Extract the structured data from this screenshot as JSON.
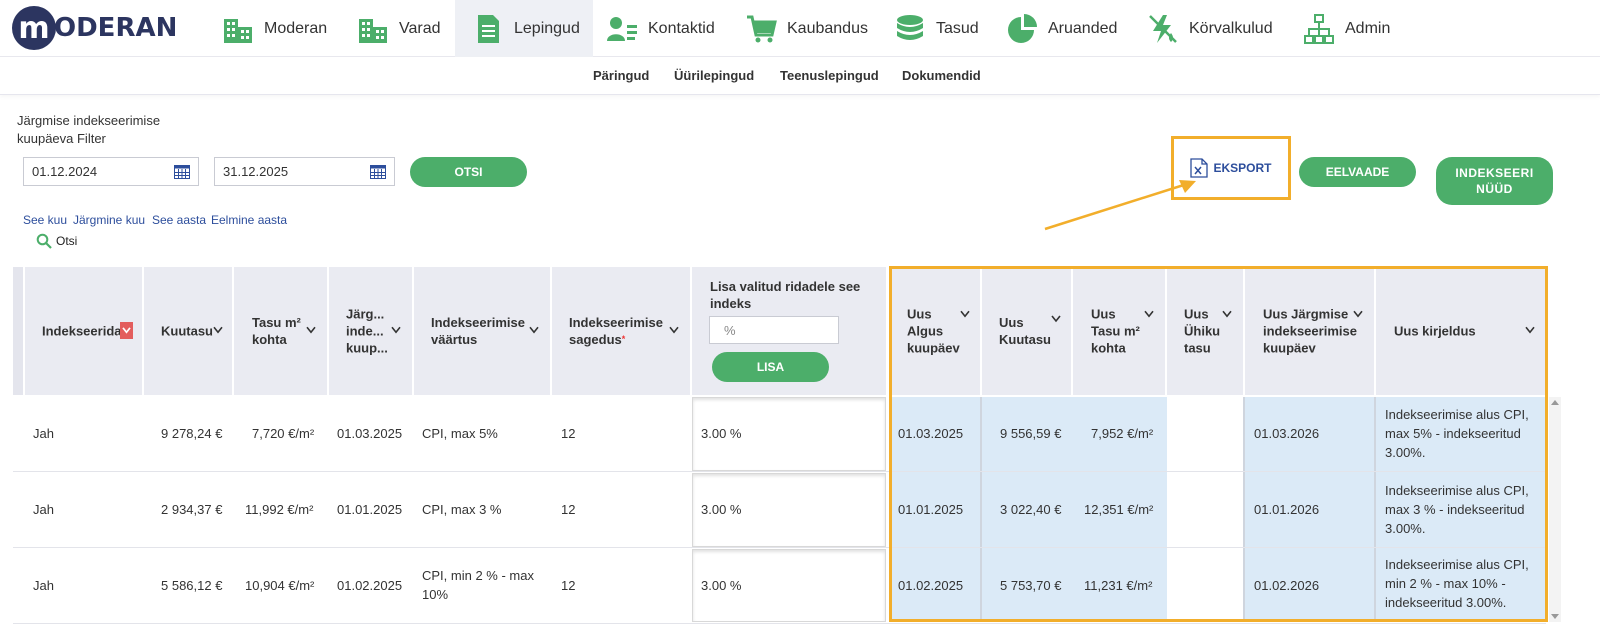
{
  "brand": {
    "logo_letter": "m",
    "logo_text": "ODERAN"
  },
  "nav": [
    {
      "label": "Moderan",
      "icon": "building-icon"
    },
    {
      "label": "Varad",
      "icon": "building-icon"
    },
    {
      "label": "Lepingud",
      "icon": "document-icon"
    },
    {
      "label": "Kontaktid",
      "icon": "contacts-icon"
    },
    {
      "label": "Kaubandus",
      "icon": "cart-icon"
    },
    {
      "label": "Tasud",
      "icon": "coins-icon"
    },
    {
      "label": "Aruanded",
      "icon": "pie-chart-icon"
    },
    {
      "label": "Körvalkulud",
      "icon": "utilities-icon"
    },
    {
      "label": "Admin",
      "icon": "org-chart-icon"
    }
  ],
  "subnav": [
    "Päringud",
    "Üürilepingud",
    "Teenuslepingud",
    "Dokumendid"
  ],
  "filter": {
    "label": "Järgmise indekseerimise kuupäeva Filter",
    "date_from": "01.12.2024",
    "date_to": "31.12.2025",
    "search_button": "OTSI",
    "quick_links": [
      "See kuu",
      "Järgmine kuu",
      "See aasta",
      "Eelmine aasta"
    ],
    "search_link": "Otsi"
  },
  "actions": {
    "export": "EKSPORT",
    "preview": "EELVAADE",
    "index_now": "INDEKSEERI NÜÜD"
  },
  "index_add": {
    "label": "Lisa valitud ridadele see indeks",
    "placeholder": "%",
    "button": "LISA"
  },
  "columns": {
    "indexed": "Indekseerida",
    "monthly": "Kuutasu",
    "per_m2": "Tasu m² kohta",
    "next_date": "Järg... inde... kuup...",
    "index_value": "Indekseerimise väärtus",
    "frequency": "Indekseerimise sagedus",
    "new_start": "Uus Algus kuupäev",
    "new_monthly": "Uus Kuutasu",
    "new_per_m2": "Uus Tasu m² kohta",
    "new_unit_fee": "Uus Ühiku tasu",
    "new_next_date": "Uus Järgmise indekseerimise kuupäev",
    "new_description": "Uus kirjeldus"
  },
  "rows": [
    {
      "indexed": "Jah",
      "monthly": "9 278,24 €",
      "per_m2": "7,720 €/m²",
      "next_date": "01.03.2025",
      "index_value": "CPI, max 5%",
      "frequency": "12",
      "pct": "3.00 %",
      "new_start": "01.03.2025",
      "new_monthly": "9 556,59 €",
      "new_per_m2": "7,952 €/m²",
      "new_unit_fee": "",
      "new_next_date": "01.03.2026",
      "new_description": "Indekseerimise alus CPI, max 5% - indekseeritud 3.00%."
    },
    {
      "indexed": "Jah",
      "monthly": "2 934,37 €",
      "per_m2": "11,992 €/m²",
      "next_date": "01.01.2025",
      "index_value": "CPI, max 3 %",
      "frequency": "12",
      "pct": "3.00 %",
      "new_start": "01.01.2025",
      "new_monthly": "3 022,40 €",
      "new_per_m2": "12,351 €/m²",
      "new_unit_fee": "",
      "new_next_date": "01.01.2026",
      "new_description": "Indekseerimise alus CPI, max 3 % - indekseeritud 3.00%."
    },
    {
      "indexed": "Jah",
      "monthly": "5 586,12 €",
      "per_m2": "10,904 €/m²",
      "next_date": "01.02.2025",
      "index_value": "CPI, min 2 % - max 10%",
      "frequency": "12",
      "pct": "3.00 %",
      "new_start": "01.02.2025",
      "new_monthly": "5 753,70 €",
      "new_per_m2": "11,231 €/m²",
      "new_unit_fee": "",
      "new_next_date": "01.02.2026",
      "new_description": "Indekseerimise alus CPI, min 2 % - max 10% - indekseeritud 3.00%."
    }
  ],
  "colors": {
    "green": "#4cae6a",
    "highlight": "#f2ae2b",
    "link_blue": "#2d4e9c",
    "header_bg": "#eaebf2",
    "new_cell_bg": "#dbeaf7"
  }
}
